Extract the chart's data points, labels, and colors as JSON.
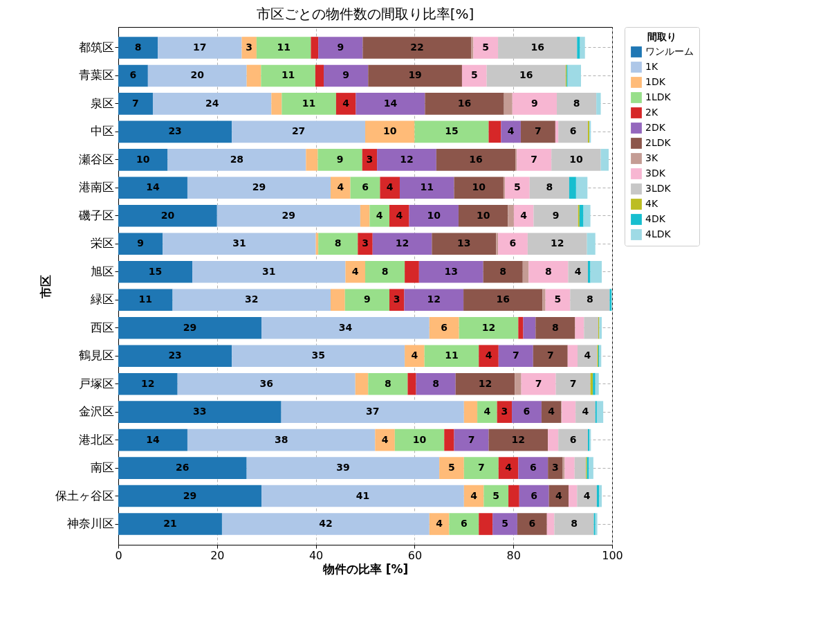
{
  "chart_data": {
    "type": "bar",
    "orientation": "horizontal",
    "stacked": true,
    "title": "市区ごとの物件数の間取り比率[%]",
    "xlabel": "物件の比率 [%]",
    "ylabel": "市区",
    "legend_title": "間取り",
    "legend": "top right",
    "grid": true,
    "categories": [
      "都筑区",
      "青葉区",
      "泉区",
      "中区",
      "瀬谷区",
      "港南区",
      "磯子区",
      "栄区",
      "旭区",
      "緑区",
      "西区",
      "鶴見区",
      "戸塚区",
      "金沢区",
      "港北区",
      "南区",
      "保土ヶ谷区",
      "神奈川区"
    ],
    "xlim": [
      0,
      100
    ],
    "xticks": [
      0,
      20,
      40,
      60,
      80,
      100
    ],
    "series": [
      {
        "name": "ワンルーム",
        "color": "#1f77b4",
        "values": [
          8,
          6,
          7,
          23,
          10,
          14,
          20,
          9,
          15,
          11,
          29,
          23,
          12,
          33,
          14,
          26,
          29,
          21
        ],
        "value_labels": [
          "8",
          "6",
          "7",
          "23",
          "10",
          "14",
          "20",
          "9",
          "15",
          "11",
          "29",
          "23",
          "12",
          "33",
          "14",
          "26",
          "29",
          "21"
        ]
      },
      {
        "name": "1K",
        "color": "#aec7e8",
        "values": [
          17,
          20,
          24,
          27,
          28,
          29,
          29,
          31,
          31,
          32,
          34,
          35,
          36,
          37,
          38,
          39,
          41,
          42
        ],
        "value_labels": [
          "17",
          "20",
          "24",
          "27",
          "28",
          "29",
          "29",
          "31",
          "31",
          "32",
          "34",
          "35",
          "36",
          "37",
          "38",
          "39",
          "41",
          "42"
        ]
      },
      {
        "name": "1DK",
        "color": "#ffbb78",
        "values": [
          3,
          2.9,
          2.1,
          10,
          2.4,
          4,
          1.9,
          0.5,
          4,
          2.9,
          6,
          4,
          2.6,
          2.7,
          4,
          5,
          4,
          4
        ],
        "value_labels": [
          "3",
          null,
          null,
          "10",
          null,
          "4",
          null,
          null,
          "4",
          null,
          "6",
          "4",
          null,
          null,
          "4",
          "5",
          "4",
          "4"
        ]
      },
      {
        "name": "1LDK",
        "color": "#98df8a",
        "values": [
          11,
          11,
          11,
          15,
          9,
          6,
          4,
          8,
          8,
          9,
          12,
          11,
          8,
          4,
          10,
          7,
          5,
          6
        ],
        "value_labels": [
          "11",
          "11",
          "11",
          "15",
          "9",
          "6",
          "4",
          "8",
          "8",
          "9",
          "12",
          "11",
          "8",
          "4",
          "10",
          "7",
          "5",
          "6"
        ]
      },
      {
        "name": "2K",
        "color": "#d62728",
        "values": [
          1.5,
          1.7,
          4,
          2.5,
          3,
          4,
          4,
          3,
          2.9,
          3,
          1,
          4,
          1.7,
          3,
          2,
          4,
          2.2,
          2.8
        ],
        "value_labels": [
          null,
          null,
          "4",
          null,
          "3",
          "4",
          "4",
          "3",
          null,
          "3",
          null,
          "4",
          null,
          "3",
          null,
          "4",
          null,
          null
        ]
      },
      {
        "name": "2DK",
        "color": "#9467bd",
        "values": [
          9,
          9,
          14,
          4,
          12,
          11,
          10,
          12,
          13,
          12,
          2.5,
          7,
          8,
          6,
          7,
          6,
          6,
          5
        ],
        "value_labels": [
          "9",
          "9",
          "14",
          "4",
          "12",
          "11",
          "10",
          "12",
          "13",
          "12",
          null,
          "7",
          "8",
          "6",
          "7",
          "6",
          "6",
          "5"
        ]
      },
      {
        "name": "2LDK",
        "color": "#8c564b",
        "values": [
          22,
          19,
          16,
          7,
          16,
          10,
          10,
          13,
          8,
          16,
          8,
          7,
          12,
          4,
          12,
          3,
          4,
          6
        ],
        "value_labels": [
          "22",
          "19",
          "16",
          "7",
          "16",
          "10",
          "10",
          "13",
          "8",
          "16",
          "8",
          "7",
          "12",
          "4",
          "12",
          "3",
          "4",
          "6"
        ]
      },
      {
        "name": "3K",
        "color": "#c49c94",
        "values": [
          0.4,
          0,
          1.7,
          0,
          0.3,
          0.3,
          1.2,
          0.4,
          1.2,
          0.6,
          0,
          0,
          1.3,
          0.1,
          0,
          0.4,
          0,
          0
        ]
      },
      {
        "name": "3DK",
        "color": "#f7b6d2",
        "values": [
          5,
          5,
          9,
          0.6,
          7,
          5,
          4,
          6,
          8,
          5,
          1.8,
          2,
          7,
          2.8,
          2.1,
          2,
          1.7,
          1.5
        ],
        "value_labels": [
          "5",
          "5",
          "9",
          null,
          "7",
          "5",
          "4",
          "6",
          "8",
          "5",
          null,
          null,
          "7",
          null,
          null,
          null,
          null,
          null
        ]
      },
      {
        "name": "3LDK",
        "color": "#c7c7c7",
        "values": [
          16,
          16,
          8,
          6,
          10,
          8,
          9,
          12,
          4,
          8,
          2.9,
          4,
          7,
          4,
          6,
          2.3,
          4,
          8
        ],
        "value_labels": [
          "16",
          "16",
          "8",
          "6",
          "10",
          "8",
          "9",
          "12",
          "4",
          "8",
          null,
          "4",
          "7",
          "4",
          "6",
          null,
          "4",
          "8"
        ]
      },
      {
        "name": "4K",
        "color": "#bcbd22",
        "values": [
          0,
          0.2,
          0,
          0.3,
          0,
          0,
          0.3,
          0,
          0,
          0,
          0.2,
          0.2,
          0.5,
          0,
          0,
          0.2,
          0,
          0
        ]
      },
      {
        "name": "4DK",
        "color": "#17becf",
        "values": [
          0.6,
          0.2,
          0,
          0,
          0,
          1.4,
          0.8,
          0,
          0.5,
          0.4,
          0,
          0.2,
          0.5,
          0.3,
          0.3,
          0.4,
          0.5,
          0.3
        ]
      },
      {
        "name": "4LDK",
        "color": "#9edae5",
        "values": [
          1,
          2.7,
          0.9,
          0.3,
          1.6,
          2.3,
          1.4,
          1.7,
          2.3,
          0,
          0.5,
          0.4,
          0.7,
          1.3,
          0.3,
          0.9,
          0.5,
          0.4
        ]
      }
    ]
  }
}
